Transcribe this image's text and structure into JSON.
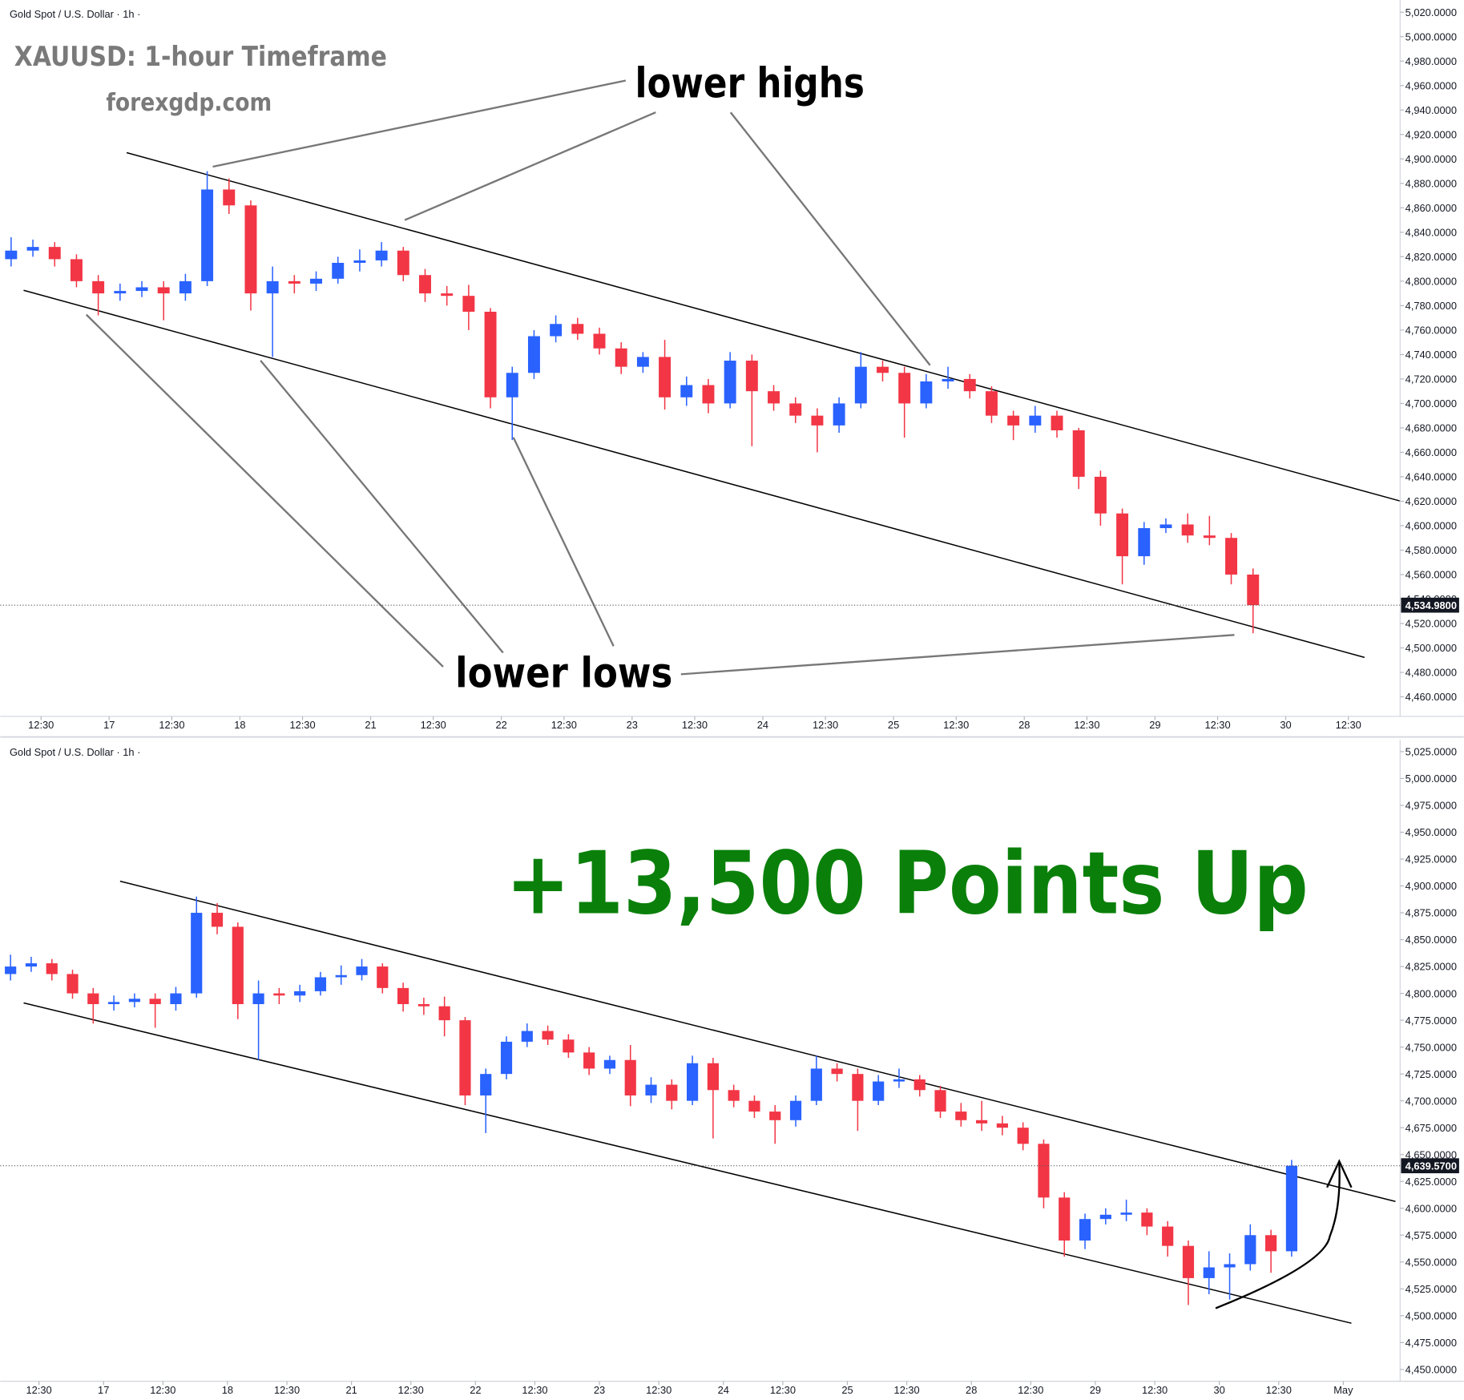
{
  "chart_data": [
    {
      "type": "candlestick",
      "header": "Gold Spot / U.S. Dollar · 1h ·",
      "title": "XAUUSD: 1-hour Timeframe",
      "subtitle": "forexgdp.com",
      "annotations": [
        "lower highs",
        "lower lows"
      ],
      "up_color": "#2962ff",
      "down_color": "#f23645",
      "xlim": [
        0,
        257
      ],
      "ylim": [
        4444,
        5030
      ],
      "xticks": [
        {
          "value": 7.5,
          "label": "12:30"
        },
        {
          "value": 20,
          "label": "17"
        },
        {
          "value": 31.5,
          "label": "12:30"
        },
        {
          "value": 44,
          "label": "18"
        },
        {
          "value": 55.5,
          "label": "12:30"
        },
        {
          "value": 68,
          "label": "21"
        },
        {
          "value": 79.5,
          "label": "12:30"
        },
        {
          "value": 92,
          "label": "22"
        },
        {
          "value": 103.5,
          "label": "12:30"
        },
        {
          "value": 116,
          "label": "23"
        },
        {
          "value": 127.5,
          "label": "12:30"
        },
        {
          "value": 140,
          "label": "24"
        },
        {
          "value": 151.5,
          "label": "12:30"
        },
        {
          "value": 164,
          "label": "25"
        },
        {
          "value": 175.5,
          "label": "12:30"
        },
        {
          "value": 188,
          "label": "28"
        },
        {
          "value": 199.5,
          "label": "12:30"
        },
        {
          "value": 212,
          "label": "29"
        },
        {
          "value": 223.5,
          "label": "12:30"
        },
        {
          "value": 236,
          "label": "30"
        },
        {
          "value": 247.5,
          "label": "12:30"
        }
      ],
      "yticks": [
        {
          "value": 4460,
          "label": "4,460.0000"
        },
        {
          "value": 4480,
          "label": "4,480.0000"
        },
        {
          "value": 4500,
          "label": "4,500.0000"
        },
        {
          "value": 4520,
          "label": "4,520.0000"
        },
        {
          "value": 4540,
          "label": "4,540.0000"
        },
        {
          "value": 4560,
          "label": "4,560.0000"
        },
        {
          "value": 4580,
          "label": "4,580.0000"
        },
        {
          "value": 4600,
          "label": "4,600.0000"
        },
        {
          "value": 4620,
          "label": "4,620.0000"
        },
        {
          "value": 4640,
          "label": "4,640.0000"
        },
        {
          "value": 4660,
          "label": "4,660.0000"
        },
        {
          "value": 4680,
          "label": "4,680.0000"
        },
        {
          "value": 4700,
          "label": "4,700.0000"
        },
        {
          "value": 4720,
          "label": "4,720.0000"
        },
        {
          "value": 4740,
          "label": "4,740.0000"
        },
        {
          "value": 4760,
          "label": "4,760.0000"
        },
        {
          "value": 4780,
          "label": "4,780.0000"
        },
        {
          "value": 4800,
          "label": "4,800.0000"
        },
        {
          "value": 4820,
          "label": "4,820.0000"
        },
        {
          "value": 4840,
          "label": "4,840.0000"
        },
        {
          "value": 4860,
          "label": "4,860.0000"
        },
        {
          "value": 4880,
          "label": "4,880.0000"
        },
        {
          "value": 4900,
          "label": "4,900.0000"
        },
        {
          "value": 4920,
          "label": "4,920.0000"
        },
        {
          "value": 4940,
          "label": "4,940.0000"
        },
        {
          "value": 4960,
          "label": "4,960.0000"
        },
        {
          "value": 4980,
          "label": "4,980.0000"
        },
        {
          "value": 5000,
          "label": "5,000.0000"
        },
        {
          "value": 5020,
          "label": "5,020.0000"
        }
      ],
      "last_price": {
        "value": 4534.98,
        "label": "4,534.9800"
      },
      "x": [
        2,
        6,
        10,
        14,
        18,
        22,
        26,
        30,
        34,
        38,
        42,
        46,
        50,
        54,
        58,
        62,
        66,
        70,
        74,
        78,
        82,
        86,
        90,
        94,
        98,
        102,
        106,
        110,
        114,
        118,
        122,
        126,
        130,
        134,
        138,
        142,
        146,
        150,
        154,
        158,
        162,
        166,
        170,
        174,
        178,
        182,
        186,
        190,
        194,
        198,
        202,
        206,
        210,
        214,
        218,
        222,
        226,
        230
      ],
      "open": [
        4818,
        4825,
        4828,
        4818,
        4800,
        4790,
        4792,
        4795,
        4790,
        4800,
        4875,
        4862,
        4790,
        4800,
        4798,
        4802,
        4815,
        4817,
        4825,
        4805,
        4790,
        4788,
        4775,
        4705,
        4725,
        4755,
        4765,
        4757,
        4745,
        4730,
        4738,
        4705,
        4715,
        4700,
        4735,
        4710,
        4700,
        4690,
        4682,
        4700,
        4730,
        4725,
        4700,
        4718,
        4720,
        4710,
        4690,
        4682,
        4690,
        4678,
        4640,
        4610,
        4575,
        4598,
        4601,
        4592,
        4590,
        4560
      ],
      "high": [
        4836,
        4834,
        4832,
        4822,
        4805,
        4798,
        4800,
        4800,
        4806,
        4890,
        4884,
        4866,
        4812,
        4805,
        4808,
        4820,
        4826,
        4832,
        4828,
        4810,
        4796,
        4797,
        4778,
        4730,
        4760,
        4772,
        4770,
        4762,
        4750,
        4742,
        4752,
        4722,
        4720,
        4742,
        4740,
        4715,
        4705,
        4696,
        4705,
        4742,
        4735,
        4730,
        4724,
        4730,
        4724,
        4714,
        4694,
        4698,
        4694,
        4680,
        4645,
        4614,
        4603,
        4606,
        4610,
        4608,
        4594,
        4565
      ],
      "low": [
        4812,
        4820,
        4812,
        4795,
        4772,
        4784,
        4787,
        4768,
        4784,
        4796,
        4855,
        4776,
        4738,
        4790,
        4792,
        4798,
        4808,
        4812,
        4800,
        4783,
        4780,
        4760,
        4696,
        4670,
        4720,
        4750,
        4752,
        4740,
        4724,
        4725,
        4695,
        4698,
        4692,
        4696,
        4665,
        4694,
        4684,
        4660,
        4676,
        4696,
        4718,
        4672,
        4696,
        4712,
        4704,
        4684,
        4670,
        4676,
        4672,
        4630,
        4600,
        4552,
        4568,
        4594,
        4586,
        4584,
        4552,
        4512
      ],
      "close": [
        4825,
        4828,
        4818,
        4800,
        4790,
        4792,
        4795,
        4790,
        4800,
        4875,
        4862,
        4790,
        4800,
        4798,
        4802,
        4815,
        4817,
        4825,
        4805,
        4790,
        4788,
        4775,
        4705,
        4725,
        4755,
        4765,
        4757,
        4745,
        4730,
        4738,
        4705,
        4715,
        4700,
        4735,
        4710,
        4700,
        4690,
        4682,
        4700,
        4730,
        4725,
        4700,
        4718,
        4720,
        4710,
        4690,
        4682,
        4690,
        4678,
        4640,
        4610,
        4575,
        4598,
        4601,
        4592,
        4590,
        4560,
        4534.98
      ]
    },
    {
      "type": "candlestick",
      "header": "Gold Spot / U.S. Dollar · 1h ·",
      "annotations": [
        "+13,500 Points Up"
      ],
      "up_color": "#2962ff",
      "down_color": "#f23645",
      "xlim": [
        0,
        271
      ],
      "ylim": [
        4439,
        5036
      ],
      "xticks": [
        {
          "value": 7.5,
          "label": "12:30"
        },
        {
          "value": 20,
          "label": "17"
        },
        {
          "value": 31.5,
          "label": "12:30"
        },
        {
          "value": 44,
          "label": "18"
        },
        {
          "value": 55.5,
          "label": "12:30"
        },
        {
          "value": 68,
          "label": "21"
        },
        {
          "value": 79.5,
          "label": "12:30"
        },
        {
          "value": 92,
          "label": "22"
        },
        {
          "value": 103.5,
          "label": "12:30"
        },
        {
          "value": 116,
          "label": "23"
        },
        {
          "value": 127.5,
          "label": "12:30"
        },
        {
          "value": 140,
          "label": "24"
        },
        {
          "value": 151.5,
          "label": "12:30"
        },
        {
          "value": 164,
          "label": "25"
        },
        {
          "value": 175.5,
          "label": "12:30"
        },
        {
          "value": 188,
          "label": "28"
        },
        {
          "value": 199.5,
          "label": "12:30"
        },
        {
          "value": 212,
          "label": "29"
        },
        {
          "value": 223.5,
          "label": "12:30"
        },
        {
          "value": 236,
          "label": "30"
        },
        {
          "value": 247.5,
          "label": "12:30"
        },
        {
          "value": 260,
          "label": "May"
        }
      ],
      "yticks": [
        {
          "value": 4450,
          "label": "4,450.0000"
        },
        {
          "value": 4475,
          "label": "4,475.0000"
        },
        {
          "value": 4500,
          "label": "4,500.0000"
        },
        {
          "value": 4525,
          "label": "4,525.0000"
        },
        {
          "value": 4550,
          "label": "4,550.0000"
        },
        {
          "value": 4575,
          "label": "4,575.0000"
        },
        {
          "value": 4600,
          "label": "4,600.0000"
        },
        {
          "value": 4625,
          "label": "4,625.0000"
        },
        {
          "value": 4650,
          "label": "4,650.0000"
        },
        {
          "value": 4675,
          "label": "4,675.0000"
        },
        {
          "value": 4700,
          "label": "4,700.0000"
        },
        {
          "value": 4725,
          "label": "4,725.0000"
        },
        {
          "value": 4750,
          "label": "4,750.0000"
        },
        {
          "value": 4775,
          "label": "4,775.0000"
        },
        {
          "value": 4800,
          "label": "4,800.0000"
        },
        {
          "value": 4825,
          "label": "4,825.0000"
        },
        {
          "value": 4850,
          "label": "4,850.0000"
        },
        {
          "value": 4875,
          "label": "4,875.0000"
        },
        {
          "value": 4900,
          "label": "4,900.0000"
        },
        {
          "value": 4925,
          "label": "4,925.0000"
        },
        {
          "value": 4950,
          "label": "4,950.0000"
        },
        {
          "value": 4975,
          "label": "4,975.0000"
        },
        {
          "value": 5000,
          "label": "5,000.0000"
        },
        {
          "value": 5025,
          "label": "5,025.0000"
        }
      ],
      "last_price": {
        "value": 4639.57,
        "label": "4,639.5700"
      },
      "x": [
        2,
        6,
        10,
        14,
        18,
        22,
        26,
        30,
        34,
        38,
        42,
        46,
        50,
        54,
        58,
        62,
        66,
        70,
        74,
        78,
        82,
        86,
        90,
        94,
        98,
        102,
        106,
        110,
        114,
        118,
        122,
        126,
        130,
        134,
        138,
        142,
        146,
        150,
        154,
        158,
        162,
        166,
        170,
        174,
        178,
        182,
        186,
        190,
        194,
        198,
        202,
        206,
        210,
        214,
        218,
        222,
        226,
        230,
        234,
        238,
        242,
        246,
        250
      ],
      "open": [
        4818,
        4825,
        4828,
        4818,
        4800,
        4790,
        4792,
        4795,
        4790,
        4800,
        4875,
        4862,
        4790,
        4800,
        4798,
        4802,
        4815,
        4817,
        4825,
        4805,
        4790,
        4788,
        4775,
        4705,
        4725,
        4755,
        4765,
        4757,
        4745,
        4730,
        4738,
        4705,
        4715,
        4700,
        4735,
        4710,
        4700,
        4690,
        4682,
        4700,
        4730,
        4725,
        4700,
        4718,
        4720,
        4710,
        4690,
        4682,
        4679,
        4675,
        4660,
        4610,
        4570,
        4590,
        4594,
        4596,
        4583,
        4565,
        4535,
        4545,
        4548,
        4575,
        4560
      ],
      "high": [
        4836,
        4834,
        4832,
        4822,
        4805,
        4798,
        4800,
        4800,
        4806,
        4890,
        4884,
        4866,
        4812,
        4805,
        4808,
        4820,
        4826,
        4832,
        4828,
        4810,
        4796,
        4797,
        4778,
        4730,
        4760,
        4772,
        4770,
        4762,
        4750,
        4742,
        4752,
        4722,
        4720,
        4742,
        4740,
        4715,
        4705,
        4696,
        4705,
        4742,
        4735,
        4730,
        4724,
        4730,
        4724,
        4714,
        4698,
        4700,
        4686,
        4680,
        4664,
        4615,
        4595,
        4600,
        4608,
        4600,
        4588,
        4570,
        4560,
        4558,
        4585,
        4580,
        4645
      ],
      "low": [
        4812,
        4820,
        4812,
        4795,
        4772,
        4784,
        4787,
        4768,
        4784,
        4796,
        4855,
        4776,
        4738,
        4790,
        4792,
        4798,
        4808,
        4812,
        4800,
        4783,
        4780,
        4760,
        4696,
        4670,
        4720,
        4750,
        4752,
        4740,
        4724,
        4725,
        4695,
        4698,
        4692,
        4696,
        4665,
        4694,
        4684,
        4660,
        4676,
        4696,
        4718,
        4672,
        4696,
        4712,
        4704,
        4684,
        4676,
        4672,
        4668,
        4654,
        4600,
        4555,
        4562,
        4585,
        4588,
        4575,
        4555,
        4510,
        4520,
        4515,
        4542,
        4540,
        4555
      ],
      "close": [
        4825,
        4828,
        4818,
        4800,
        4790,
        4792,
        4795,
        4790,
        4800,
        4875,
        4862,
        4790,
        4800,
        4798,
        4802,
        4815,
        4817,
        4825,
        4805,
        4790,
        4788,
        4775,
        4705,
        4725,
        4755,
        4765,
        4757,
        4745,
        4730,
        4738,
        4705,
        4715,
        4700,
        4735,
        4710,
        4700,
        4690,
        4682,
        4700,
        4730,
        4725,
        4700,
        4718,
        4720,
        4710,
        4690,
        4682,
        4679,
        4675,
        4660,
        4610,
        4570,
        4590,
        4594,
        4596,
        4583,
        4565,
        4535,
        4545,
        4548,
        4575,
        4560,
        4639.57
      ]
    }
  ]
}
